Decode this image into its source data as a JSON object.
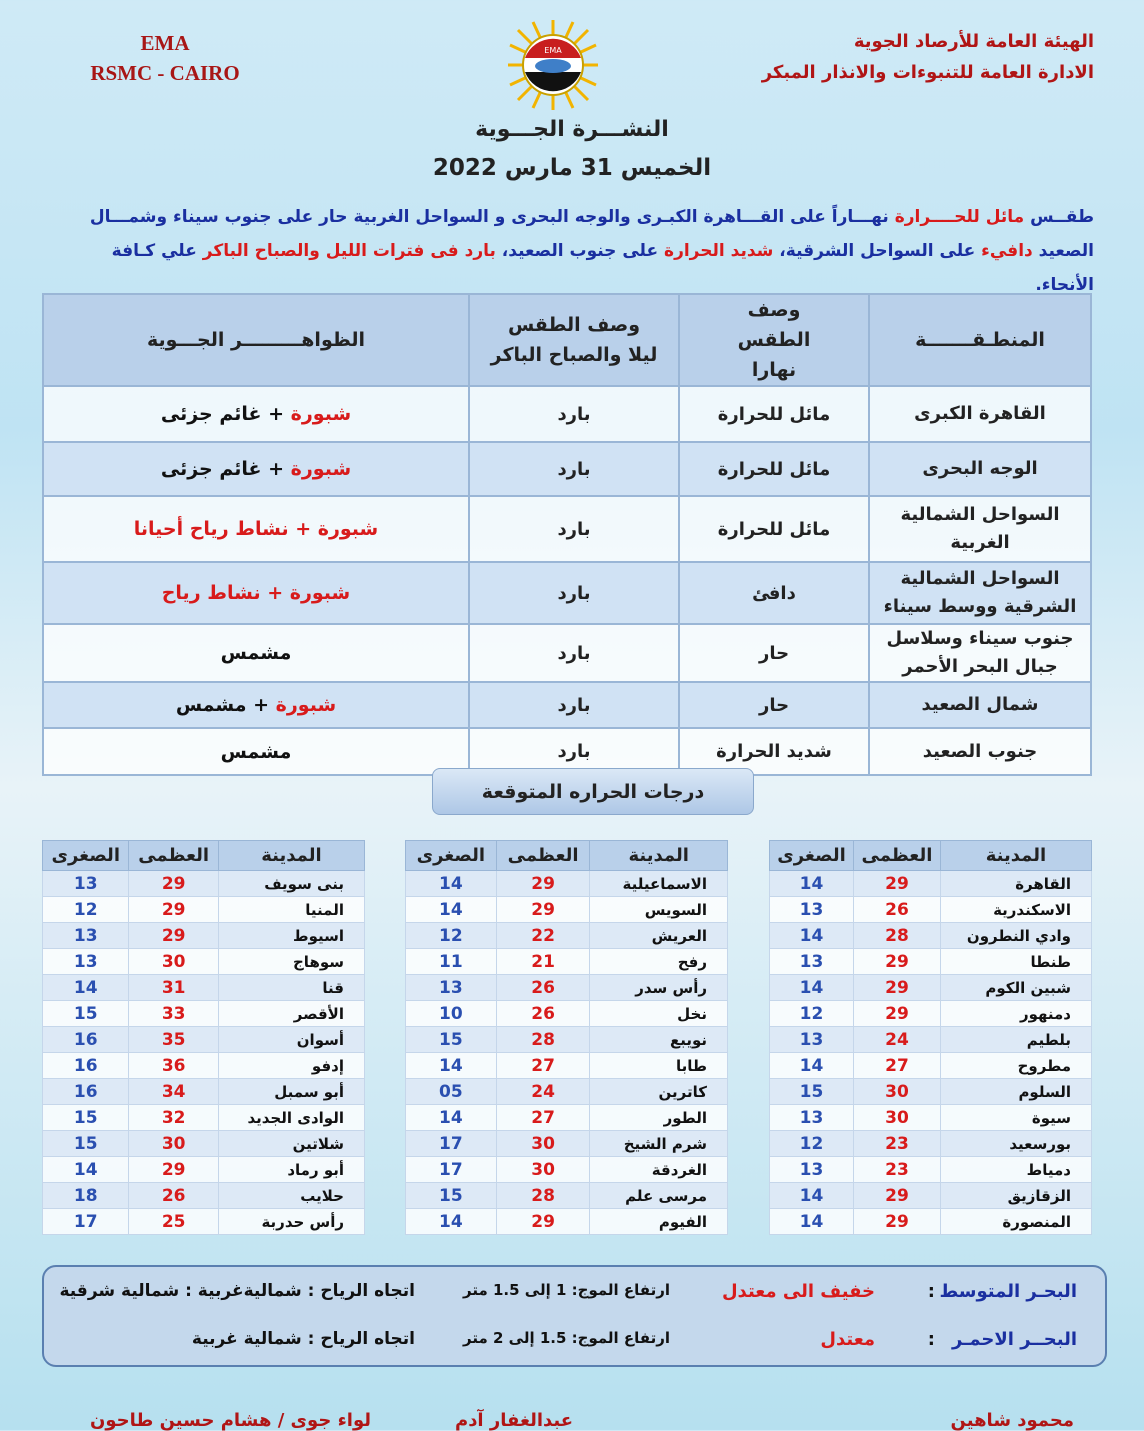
{
  "header": {
    "ema": "EMA",
    "rsmc": "RSMC - CAIRO",
    "logo_text": "EMA",
    "org_line1": "الهيئة العامة للأرصاد الجوية",
    "org_line2": "الادارة العامة للتنبوءات والانذار المبكر",
    "title": "النشـــرة الجـــوية",
    "date": "الخميس 31 مارس 2022"
  },
  "summary": [
    {
      "t": "طقــس ",
      "c": "blue"
    },
    {
      "t": "مائل للحــــرارة",
      "c": "red"
    },
    {
      "t": " نهـــاراً على القـــاهرة الكبـرى والوجه البحرى و السواحل الغربية حار على جنوب سيناء وشمـــال الصعيد ",
      "c": "blue"
    },
    {
      "t": "دافيء",
      "c": "red"
    },
    {
      "t": " على السواحل الشرقية، ",
      "c": "blue"
    },
    {
      "t": "شديد الحرارة",
      "c": "red"
    },
    {
      "t": " على جنوب الصعيد، ",
      "c": "blue"
    },
    {
      "t": "بارد فى فترات الليل والصباح الباكر",
      "c": "red"
    },
    {
      "t": " علي كـافة الأنحاء.",
      "c": "blue"
    }
  ],
  "forecast": {
    "headers": [
      "المنطـقـــــــة",
      "وصف الطقس نهارا",
      "وصف الطقس ليلا والصباح الباكر",
      "الظواهـــــــــر الجـــوية"
    ],
    "rows": [
      {
        "region": "القاهرة الكبرى",
        "day": "مائل للحرارة",
        "night": "بارد",
        "ph": [
          {
            "t": "شبورة",
            "c": "red"
          },
          {
            "t": " + غائم جزئى",
            "c": "blk"
          }
        ]
      },
      {
        "region": "الوجه البحرى",
        "day": "مائل للحرارة",
        "night": "بارد",
        "ph": [
          {
            "t": "شبورة",
            "c": "red"
          },
          {
            "t": " + غائم جزئى",
            "c": "blk"
          }
        ]
      },
      {
        "region": "السواحل الشمالية الغربية",
        "day": "مائل للحرارة",
        "night": "بارد",
        "ph": [
          {
            "t": "شبورة + نشاط رياح أحيانا",
            "c": "red"
          }
        ]
      },
      {
        "region": "السواحل الشمالية الشرقية ووسط سيناء",
        "day": "دافئ",
        "night": "بارد",
        "ph": [
          {
            "t": "شبورة + نشاط رياح",
            "c": "red"
          }
        ]
      },
      {
        "region": "جنوب سيناء وسلاسل جبال البحر الأحمر",
        "day": "حار",
        "night": "بارد",
        "ph": [
          {
            "t": "مشمس",
            "c": "blk"
          }
        ]
      },
      {
        "region": "شمال الصعيد",
        "day": "حار",
        "night": "بارد",
        "ph": [
          {
            "t": "شبورة",
            "c": "red"
          },
          {
            "t": " + مشمس",
            "c": "blk"
          }
        ]
      },
      {
        "region": "جنوب الصعيد",
        "day": "شديد الحرارة",
        "night": "بارد",
        "ph": [
          {
            "t": "مشمس",
            "c": "blk"
          }
        ]
      }
    ]
  },
  "temps": {
    "heading": "درجات الحراره المتوقعة",
    "headers": [
      "المدينة",
      "العظمى",
      "الصغرى"
    ],
    "tables": [
      [
        [
          "القاهرة",
          "29",
          "14"
        ],
        [
          "الاسكندرية",
          "26",
          "13"
        ],
        [
          "وادي النطرون",
          "28",
          "14"
        ],
        [
          "طنطا",
          "29",
          "13"
        ],
        [
          "شبين الكوم",
          "29",
          "14"
        ],
        [
          "دمنهور",
          "29",
          "12"
        ],
        [
          "بلطيم",
          "24",
          "13"
        ],
        [
          "مطروح",
          "27",
          "14"
        ],
        [
          "السلوم",
          "30",
          "15"
        ],
        [
          "سيوة",
          "30",
          "13"
        ],
        [
          "بورسعيد",
          "23",
          "12"
        ],
        [
          "دمياط",
          "23",
          "13"
        ],
        [
          "الزقازيق",
          "29",
          "14"
        ],
        [
          "المنصورة",
          "29",
          "14"
        ]
      ],
      [
        [
          "الاسماعيلية",
          "29",
          "14"
        ],
        [
          "السويس",
          "29",
          "14"
        ],
        [
          "العريش",
          "22",
          "12"
        ],
        [
          "رفح",
          "21",
          "11"
        ],
        [
          "رأس سدر",
          "26",
          "13"
        ],
        [
          "نخل",
          "26",
          "10"
        ],
        [
          "نويبع",
          "28",
          "15"
        ],
        [
          "طابا",
          "27",
          "14"
        ],
        [
          "كاترين",
          "24",
          "05"
        ],
        [
          "الطور",
          "27",
          "14"
        ],
        [
          "شرم الشيخ",
          "30",
          "17"
        ],
        [
          "الغردقة",
          "30",
          "17"
        ],
        [
          "مرسى علم",
          "28",
          "15"
        ],
        [
          "الفيوم",
          "29",
          "14"
        ]
      ],
      [
        [
          "بنى سويف",
          "29",
          "13"
        ],
        [
          "المنيا",
          "29",
          "12"
        ],
        [
          "اسيوط",
          "29",
          "13"
        ],
        [
          "سوهاج",
          "30",
          "13"
        ],
        [
          "قنا",
          "31",
          "14"
        ],
        [
          "الأقصر",
          "33",
          "15"
        ],
        [
          "أسوان",
          "35",
          "16"
        ],
        [
          "إدفو",
          "36",
          "16"
        ],
        [
          "أبو سمبل",
          "34",
          "16"
        ],
        [
          "الوادى الجديد",
          "32",
          "15"
        ],
        [
          "شلاتين",
          "30",
          "15"
        ],
        [
          "أبو رماد",
          "29",
          "14"
        ],
        [
          "حلايب",
          "26",
          "18"
        ],
        [
          "رأس حدربة",
          "25",
          "17"
        ]
      ]
    ]
  },
  "sea": [
    {
      "name": "البحـر المتوسط",
      "colon": ":",
      "state": "خفيف الى معتدل",
      "wave": "ارتفاع الموج: 1 إلى 1.5 متر",
      "wind": "اتجاه الرياح : شماليةغربية : شمالية شرقية"
    },
    {
      "name": "البحــر الاحمـر",
      "colon": ":",
      "state": "معتدل",
      "wave": "ارتفاع الموج: 1.5 إلى 2 متر",
      "wind": "اتجاه الرياح : شمالية غربية"
    }
  ],
  "footer": [
    "محمود شاهين",
    "عبدالغفار آدم",
    "لواء جوى / هشام حسين طاحون"
  ]
}
